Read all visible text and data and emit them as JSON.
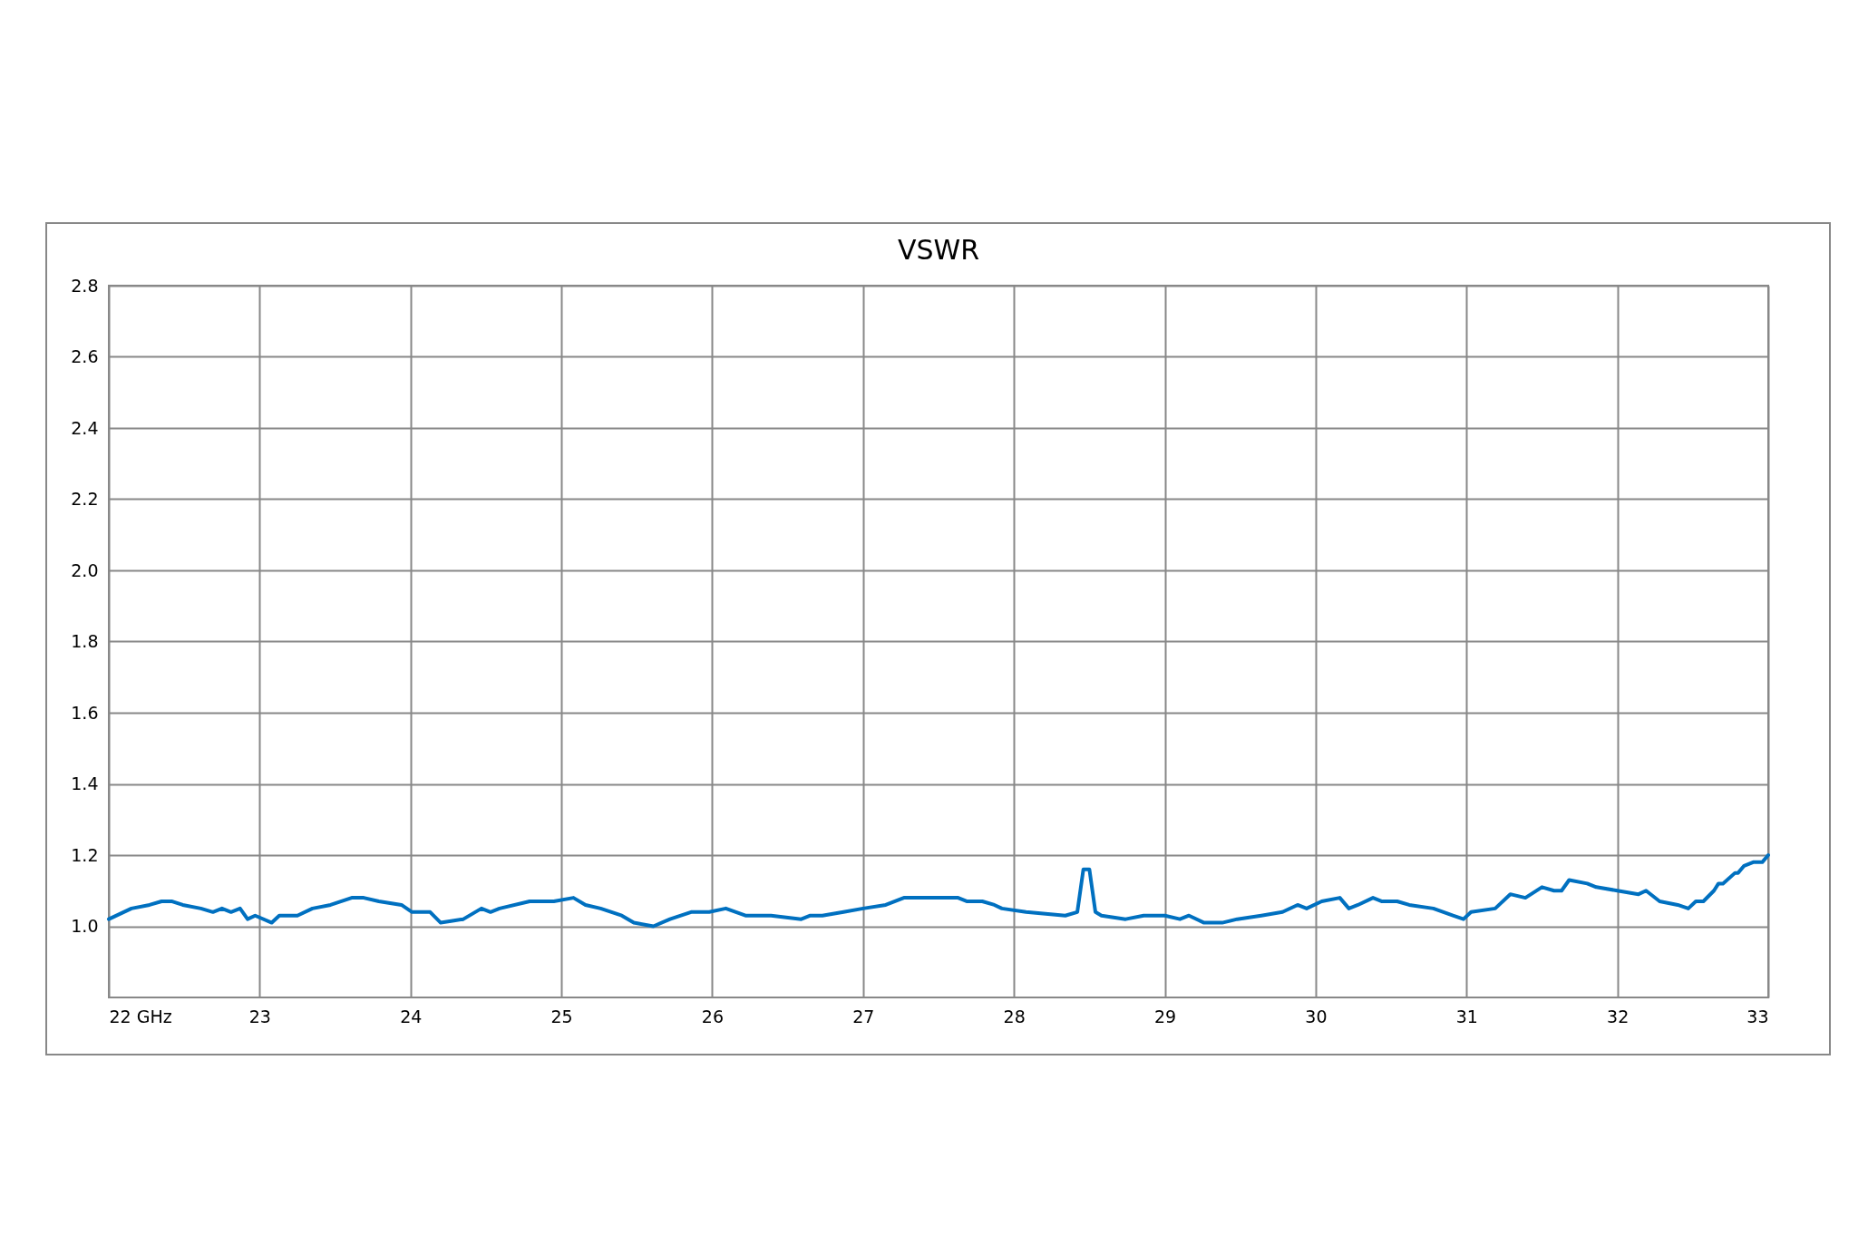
{
  "chart_data": {
    "type": "line",
    "title": "VSWR",
    "xlim": [
      22,
      33
    ],
    "xticks": [
      {
        "value": 22,
        "label": "22 GHz"
      },
      23,
      24,
      25,
      26,
      27,
      28,
      29,
      30,
      31,
      32,
      33
    ],
    "ylim": [
      0.8,
      2.8
    ],
    "yticks": [
      {
        "value": 1,
        "label": "1.0"
      },
      1.2,
      1.4,
      1.6,
      1.8,
      {
        "value": 2,
        "label": "2.0"
      },
      2.2,
      2.4,
      2.6,
      2.8
    ],
    "grid": true,
    "x": [
      22.0,
      22.15,
      22.27,
      22.35,
      22.42,
      22.49,
      22.61,
      22.69,
      22.75,
      22.81,
      22.87,
      22.92,
      22.97,
      23.08,
      23.13,
      23.25,
      23.35,
      23.47,
      23.61,
      23.69,
      23.79,
      23.94,
      24.01,
      24.13,
      24.2,
      24.35,
      24.47,
      24.53,
      24.59,
      24.79,
      24.95,
      25.08,
      25.16,
      25.26,
      25.4,
      25.48,
      25.61,
      25.72,
      25.86,
      25.98,
      26.09,
      26.22,
      26.32,
      26.39,
      26.59,
      26.65,
      26.73,
      26.87,
      27.0,
      27.15,
      27.27,
      27.45,
      27.63,
      27.69,
      27.79,
      27.87,
      27.92,
      28.08,
      28.34,
      28.42,
      28.46,
      28.5,
      28.54,
      28.58,
      28.74,
      28.86,
      29.0,
      29.1,
      29.16,
      29.26,
      29.38,
      29.48,
      29.64,
      29.78,
      29.88,
      29.94,
      30.04,
      30.16,
      30.22,
      30.28,
      30.38,
      30.44,
      30.54,
      30.62,
      30.78,
      30.91,
      30.98,
      31.03,
      31.19,
      31.29,
      31.39,
      31.5,
      31.58,
      31.63,
      31.68,
      31.8,
      31.86,
      32.0,
      32.14,
      32.19,
      32.28,
      32.4,
      32.47,
      32.52,
      32.57,
      32.64,
      32.67,
      32.7,
      32.78,
      32.8,
      32.84,
      32.9,
      32.96,
      33.0
    ],
    "series": [
      {
        "color": "#0070c0",
        "values": [
          1.02,
          1.05,
          1.06,
          1.07,
          1.07,
          1.06,
          1.05,
          1.04,
          1.05,
          1.04,
          1.05,
          1.02,
          1.03,
          1.01,
          1.03,
          1.03,
          1.05,
          1.06,
          1.08,
          1.08,
          1.07,
          1.06,
          1.04,
          1.04,
          1.01,
          1.02,
          1.05,
          1.04,
          1.05,
          1.07,
          1.07,
          1.08,
          1.06,
          1.05,
          1.03,
          1.01,
          1.0,
          1.02,
          1.04,
          1.04,
          1.05,
          1.03,
          1.03,
          1.03,
          1.02,
          1.03,
          1.03,
          1.04,
          1.05,
          1.06,
          1.08,
          1.08,
          1.08,
          1.07,
          1.07,
          1.06,
          1.05,
          1.04,
          1.03,
          1.04,
          1.16,
          1.16,
          1.04,
          1.03,
          1.02,
          1.03,
          1.03,
          1.02,
          1.03,
          1.01,
          1.01,
          1.02,
          1.03,
          1.04,
          1.06,
          1.05,
          1.07,
          1.08,
          1.05,
          1.06,
          1.08,
          1.07,
          1.07,
          1.06,
          1.05,
          1.03,
          1.02,
          1.04,
          1.05,
          1.09,
          1.08,
          1.11,
          1.1,
          1.1,
          1.13,
          1.12,
          1.11,
          1.1,
          1.09,
          1.1,
          1.07,
          1.06,
          1.05,
          1.07,
          1.07,
          1.1,
          1.12,
          1.12,
          1.15,
          1.15,
          1.17,
          1.18,
          1.18,
          1.2
        ]
      }
    ]
  }
}
